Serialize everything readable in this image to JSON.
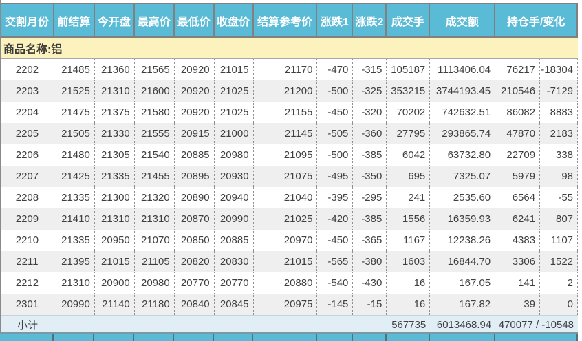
{
  "colors": {
    "header_bg": "#5ABBD6",
    "product_row_bg": "#FCF2BE",
    "subtotal_bg": "#E1EEF6",
    "alt_row_bg": "#EFEFEF",
    "header_text": "#FFFFFF",
    "body_text": "#3F3F3F"
  },
  "table": {
    "header_labels": [
      "交割月份",
      "前结算",
      "今开盘",
      "最高价",
      "最低价",
      "收盘价",
      "结算参考价",
      "涨跌1",
      "涨跌2",
      "成交手",
      "成交额",
      "持仓手/变化"
    ],
    "product_row": {
      "label": "商品名称:铝"
    },
    "rows": [
      [
        "2202",
        "21485",
        "21360",
        "21565",
        "20920",
        "21015",
        "21170",
        "-470",
        "-315",
        "105187",
        "1113406.04",
        "76217",
        "-18304"
      ],
      [
        "2203",
        "21525",
        "21310",
        "21600",
        "20920",
        "21025",
        "21200",
        "-500",
        "-325",
        "353215",
        "3744193.45",
        "210546",
        "-7129"
      ],
      [
        "2204",
        "21475",
        "21375",
        "21580",
        "20920",
        "21025",
        "21155",
        "-450",
        "-320",
        "70202",
        "742632.51",
        "86082",
        "8883"
      ],
      [
        "2205",
        "21505",
        "21330",
        "21555",
        "20915",
        "21000",
        "21145",
        "-505",
        "-360",
        "27795",
        "293865.74",
        "47870",
        "2183"
      ],
      [
        "2206",
        "21480",
        "21305",
        "21540",
        "20885",
        "20980",
        "21095",
        "-500",
        "-385",
        "6042",
        "63732.80",
        "22709",
        "338"
      ],
      [
        "2207",
        "21425",
        "21335",
        "21455",
        "20895",
        "20930",
        "21075",
        "-495",
        "-350",
        "695",
        "7325.07",
        "5979",
        "98"
      ],
      [
        "2208",
        "21335",
        "21300",
        "21320",
        "20890",
        "20940",
        "21040",
        "-395",
        "-295",
        "241",
        "2535.60",
        "6564",
        "-55"
      ],
      [
        "2209",
        "21410",
        "21310",
        "21310",
        "20870",
        "20990",
        "21025",
        "-420",
        "-385",
        "1556",
        "16359.93",
        "6241",
        "807"
      ],
      [
        "2210",
        "21335",
        "20950",
        "21070",
        "20850",
        "20885",
        "20970",
        "-450",
        "-365",
        "1167",
        "12238.26",
        "4383",
        "1107"
      ],
      [
        "2211",
        "21395",
        "21015",
        "21105",
        "20820",
        "20830",
        "21015",
        "-565",
        "-380",
        "1603",
        "16844.70",
        "3306",
        "1522"
      ],
      [
        "2212",
        "21310",
        "20900",
        "20980",
        "20770",
        "20770",
        "20880",
        "-540",
        "-430",
        "16",
        "167.05",
        "141",
        "2"
      ],
      [
        "2301",
        "20990",
        "21140",
        "21180",
        "20840",
        "20845",
        "20975",
        "-145",
        "-15",
        "16",
        "167.82",
        "39",
        "0"
      ]
    ],
    "subtotal": {
      "label": "小计",
      "volume": "567735",
      "turnover": "6013468.94",
      "open_interest_change": "470077 / -10548"
    }
  }
}
